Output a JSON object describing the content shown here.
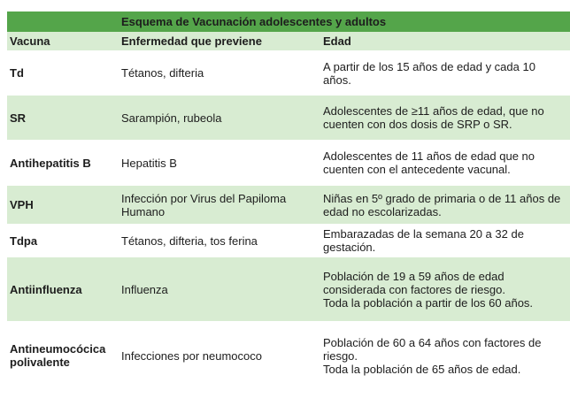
{
  "table": {
    "title": "Esquema de Vacunación adolescentes y adultos",
    "columns": [
      "Vacuna",
      "Enfermedad que previene",
      "Edad"
    ],
    "rows": [
      {
        "vacuna": "Td",
        "enfermedad": "Tétanos, difteria",
        "edad": [
          "A partir de los 15 años de edad y cada 10 años."
        ]
      },
      {
        "vacuna": "SR",
        "enfermedad": "Sarampión, rubeola",
        "edad": [
          "Adolescentes de ≥11 años de edad, que no cuenten con dos dosis de SRP o SR."
        ]
      },
      {
        "vacuna": "Antihepatitis B",
        "enfermedad": "Hepatitis B",
        "edad": [
          "Adolescentes de 11 años de edad que no cuenten con el antecedente vacunal."
        ]
      },
      {
        "vacuna": "VPH",
        "enfermedad": "Infección por Virus del Papiloma Humano",
        "edad": [
          "Niñas en 5º grado de primaria o de 11 años de edad no escolarizadas."
        ]
      },
      {
        "vacuna": "Tdpa",
        "enfermedad": "Tétanos, difteria, tos ferina",
        "edad": [
          "Embarazadas de la semana 20 a 32 de gestación."
        ]
      },
      {
        "vacuna": "Antiinfluenza",
        "enfermedad": "Influenza",
        "edad": [
          "Población de 19 a 59 años de edad considerada con factores de riesgo.",
          "Toda la población a partir de los 60 años."
        ]
      },
      {
        "vacuna": "Antineumocócica polivalente",
        "enfermedad": "Infecciones por neumococo",
        "edad": [
          "Población de 60 a 64 años con factores de riesgo.",
          "Toda la población de 65 años de edad."
        ]
      }
    ],
    "colors": {
      "header_green": "#54a54a",
      "row_green": "#d8ecd2",
      "text": "#1d1d1d"
    }
  }
}
